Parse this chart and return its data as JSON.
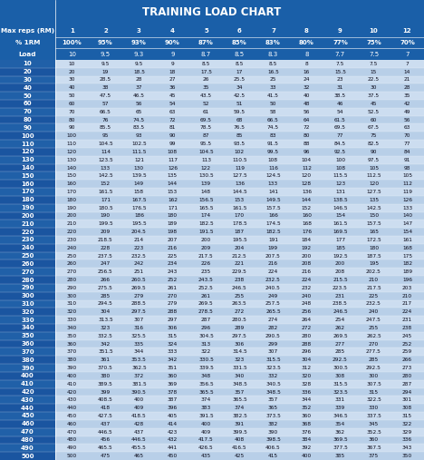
{
  "title": "TRAINING LOAD CHART",
  "header_labels": [
    [
      "Max reps (RM)",
      "1",
      "2",
      "3",
      "4",
      "5",
      "6",
      "7",
      "8",
      "9",
      "10",
      "12"
    ],
    [
      "% 1RM",
      "100%",
      "95%",
      "93%",
      "90%",
      "87%",
      "85%",
      "83%",
      "80%",
      "77%",
      "75%",
      "70%"
    ],
    [
      "Load",
      "10",
      "9.5",
      "9.3",
      "9",
      "8.7",
      "8.5",
      "8.3",
      "8",
      "7.7",
      "7.5",
      "7"
    ]
  ],
  "loads": [
    10,
    20,
    30,
    40,
    50,
    60,
    70,
    80,
    90,
    100,
    110,
    120,
    130,
    140,
    150,
    160,
    170,
    180,
    190,
    200,
    210,
    220,
    230,
    240,
    250,
    260,
    270,
    280,
    290,
    300,
    310,
    320,
    330,
    340,
    350,
    360,
    370,
    380,
    390,
    400,
    410,
    420,
    430,
    440,
    450,
    460,
    470,
    480,
    490,
    500
  ],
  "cols_pct": [
    1.0,
    0.95,
    0.93,
    0.9,
    0.87,
    0.85,
    0.83,
    0.8,
    0.77,
    0.75,
    0.7
  ],
  "title_bg": "#1a5fa8",
  "title_color": "#ffffff",
  "header_bg": "#1a5fa8",
  "header_color": "#ffffff",
  "row_light": "#ccddf0",
  "row_dark": "#b8cfe8",
  "label_col_light": "#2060a8",
  "label_col_dark": "#1a55a0",
  "data_color": "#0a0a1a",
  "label_col_color": "#ffffff",
  "title_fontsize": 8.5,
  "header_fontsize": 5.0,
  "label_col_fontsize": 5.0,
  "data_fontsize": 4.2
}
